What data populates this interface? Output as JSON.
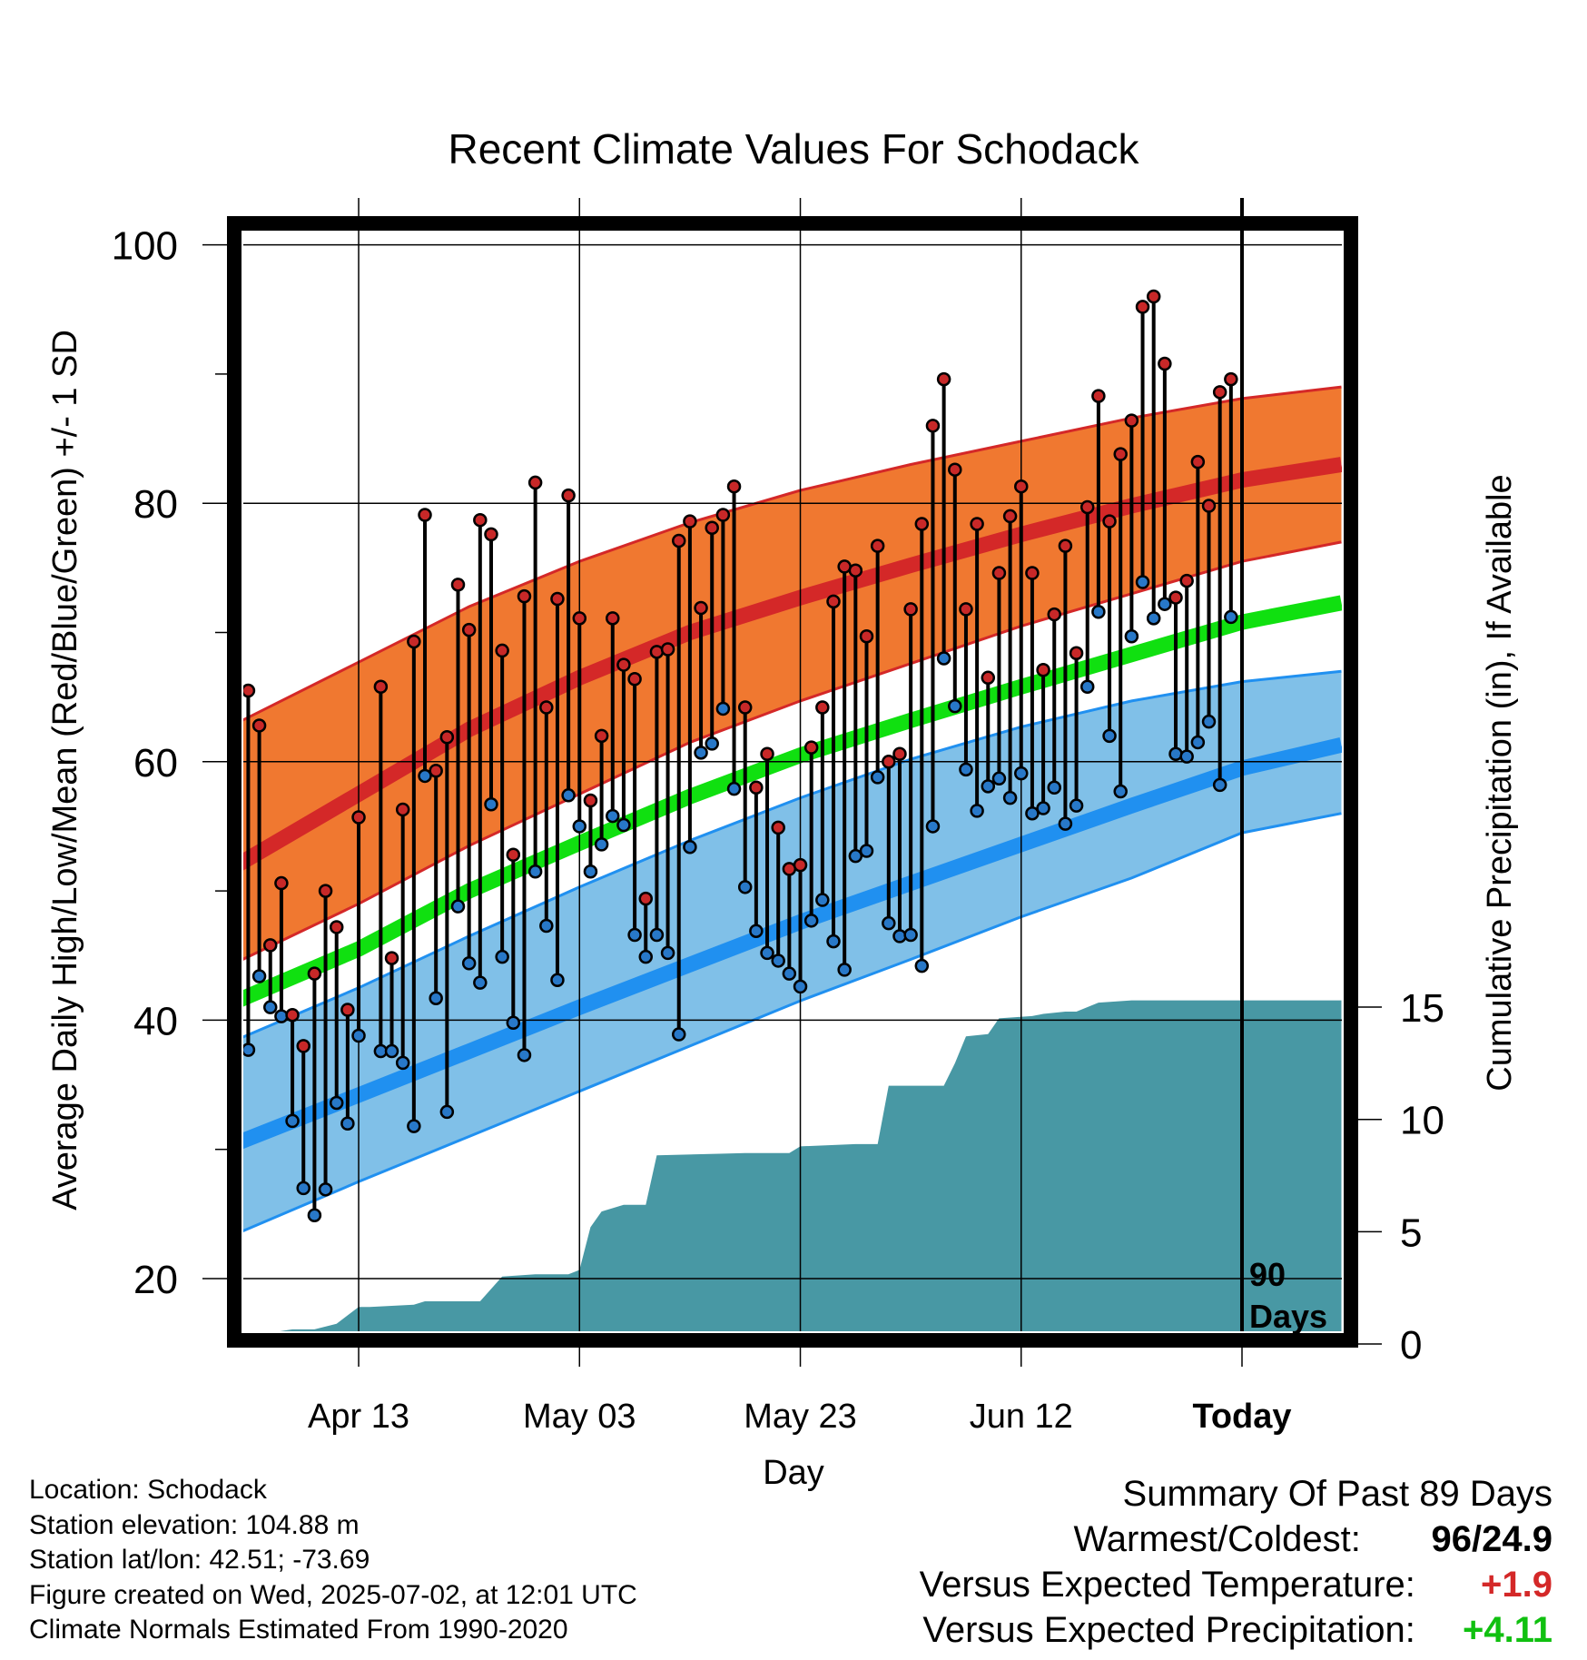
{
  "chart_data": {
    "type": "line",
    "title": "Recent Climate Values For Schodack",
    "xlabel": "Day",
    "ylabel": "Average Daily High/Low/Mean (Red/Blue/Green) +/- 1 SD",
    "y2label": "Cumulative Precipitation (in), If Available",
    "x_tick_labels": [
      "Apr 13",
      "May 03",
      "May 23",
      "Jun 12",
      "Today"
    ],
    "ylim": [
      15,
      100.5
    ],
    "yticks": [
      20,
      40,
      60,
      80,
      100
    ],
    "y2lim": [
      0,
      15
    ],
    "y2ticks": [
      0,
      5,
      10,
      15
    ],
    "grid": true,
    "today_marker_label": "90\nDays",
    "xlim_days": [
      -91,
      9
    ],
    "normals_days": [
      -91,
      -80,
      -70,
      -60,
      -50,
      -40,
      -30,
      -20,
      -10,
      0,
      9
    ],
    "normal_high": [
      52.0,
      57.5,
      62.5,
      66.5,
      70.0,
      72.7,
      75.2,
      77.6,
      79.8,
      81.8,
      83.0
    ],
    "normal_high_upper": [
      63.0,
      67.7,
      72.0,
      75.5,
      78.5,
      81.0,
      83.0,
      84.8,
      86.6,
      88.1,
      89.0
    ],
    "normal_high_lower": [
      44.5,
      49.0,
      53.5,
      57.5,
      61.5,
      64.7,
      67.6,
      70.5,
      73.0,
      75.5,
      77.0
    ],
    "normal_mean": [
      41.5,
      45.5,
      50.0,
      53.7,
      57.3,
      60.5,
      63.2,
      65.8,
      68.3,
      70.8,
      72.3
    ],
    "normal_low": [
      30.5,
      34.2,
      37.6,
      41.0,
      44.3,
      47.6,
      50.6,
      53.6,
      56.6,
      59.5,
      61.3
    ],
    "normal_low_upper": [
      38.5,
      42.5,
      46.5,
      50.3,
      53.9,
      57.2,
      60.2,
      62.7,
      64.7,
      66.2,
      67.0
    ],
    "normal_low_lower": [
      23.5,
      27.5,
      31.0,
      34.5,
      38.0,
      41.5,
      44.7,
      48.0,
      51.0,
      54.5,
      56.0
    ],
    "observations": [
      {
        "day": -90,
        "high": 65.5,
        "low": 37.7
      },
      {
        "day": -89,
        "high": 62.8,
        "low": 43.4
      },
      {
        "day": -88,
        "high": 45.8,
        "low": 41.0
      },
      {
        "day": -87,
        "high": 50.6,
        "low": 40.3
      },
      {
        "day": -86,
        "high": 40.4,
        "low": 32.2
      },
      {
        "day": -85,
        "high": 38.0,
        "low": 27.0
      },
      {
        "day": -84,
        "high": 43.6,
        "low": 24.9
      },
      {
        "day": -83,
        "high": 50.0,
        "low": 26.9
      },
      {
        "day": -82,
        "high": 47.2,
        "low": 33.6
      },
      {
        "day": -81,
        "high": 40.8,
        "low": 32.0
      },
      {
        "day": -80,
        "high": 55.7,
        "low": 38.8
      },
      {
        "day": -78,
        "high": 65.8,
        "low": 37.6
      },
      {
        "day": -77,
        "high": 44.8,
        "low": 37.6
      },
      {
        "day": -76,
        "high": 56.3,
        "low": 36.7
      },
      {
        "day": -75,
        "high": 69.3,
        "low": 31.8
      },
      {
        "day": -74,
        "high": 79.1,
        "low": 58.9
      },
      {
        "day": -73,
        "high": 59.3,
        "low": 41.7
      },
      {
        "day": -72,
        "high": 61.9,
        "low": 32.9
      },
      {
        "day": -71,
        "high": 73.7,
        "low": 48.8
      },
      {
        "day": -70,
        "high": 70.2,
        "low": 44.4
      },
      {
        "day": -69,
        "high": 78.7,
        "low": 42.9
      },
      {
        "day": -68,
        "high": 77.6,
        "low": 56.7
      },
      {
        "day": -67,
        "high": 68.6,
        "low": 44.9
      },
      {
        "day": -66,
        "high": 52.8,
        "low": 39.8
      },
      {
        "day": -65,
        "high": 72.8,
        "low": 37.3
      },
      {
        "day": -64,
        "high": 81.6,
        "low": 51.5
      },
      {
        "day": -63,
        "high": 64.2,
        "low": 47.3
      },
      {
        "day": -62,
        "high": 72.6,
        "low": 43.1
      },
      {
        "day": -61,
        "high": 80.6,
        "low": 57.4
      },
      {
        "day": -60,
        "high": 71.1,
        "low": 55.0
      },
      {
        "day": -59,
        "high": 57.0,
        "low": 51.5
      },
      {
        "day": -58,
        "high": 62.0,
        "low": 53.6
      },
      {
        "day": -57,
        "high": 71.1,
        "low": 55.8
      },
      {
        "day": -56,
        "high": 67.5,
        "low": 55.1
      },
      {
        "day": -55,
        "high": 66.4,
        "low": 46.6
      },
      {
        "day": -54,
        "high": 49.4,
        "low": 44.9
      },
      {
        "day": -53,
        "high": 68.5,
        "low": 46.6
      },
      {
        "day": -52,
        "high": 68.7,
        "low": 45.2
      },
      {
        "day": -51,
        "high": 77.1,
        "low": 38.9
      },
      {
        "day": -50,
        "high": 78.6,
        "low": 53.4
      },
      {
        "day": -49,
        "high": 71.9,
        "low": 60.7
      },
      {
        "day": -48,
        "high": 78.1,
        "low": 61.4
      },
      {
        "day": -47,
        "high": 79.1,
        "low": 64.1
      },
      {
        "day": -46,
        "high": 81.3,
        "low": 57.9
      },
      {
        "day": -45,
        "high": 64.2,
        "low": 50.3
      },
      {
        "day": -44,
        "high": 58.0,
        "low": 46.9
      },
      {
        "day": -43,
        "high": 60.6,
        "low": 45.2
      },
      {
        "day": -42,
        "high": 54.9,
        "low": 44.6
      },
      {
        "day": -41,
        "high": 51.7,
        "low": 43.6
      },
      {
        "day": -40,
        "high": 52.0,
        "low": 42.6
      },
      {
        "day": -39,
        "high": 61.1,
        "low": 47.7
      },
      {
        "day": -38,
        "high": 64.2,
        "low": 49.3
      },
      {
        "day": -37,
        "high": 72.4,
        "low": 46.1
      },
      {
        "day": -36,
        "high": 75.1,
        "low": 43.9
      },
      {
        "day": -35,
        "high": 74.8,
        "low": 52.7
      },
      {
        "day": -34,
        "high": 69.7,
        "low": 53.1
      },
      {
        "day": -33,
        "high": 76.7,
        "low": 58.8
      },
      {
        "day": -32,
        "high": 60.0,
        "low": 47.5
      },
      {
        "day": -31,
        "high": 60.6,
        "low": 46.5
      },
      {
        "day": -30,
        "high": 71.8,
        "low": 46.6
      },
      {
        "day": -29,
        "high": 78.4,
        "low": 44.2
      },
      {
        "day": -28,
        "high": 86.0,
        "low": 55.0
      },
      {
        "day": -27,
        "high": 89.6,
        "low": 68.0
      },
      {
        "day": -26,
        "high": 82.6,
        "low": 64.3
      },
      {
        "day": -25,
        "high": 71.8,
        "low": 59.4
      },
      {
        "day": -24,
        "high": 78.4,
        "low": 56.2
      },
      {
        "day": -23,
        "high": 66.5,
        "low": 58.1
      },
      {
        "day": -22,
        "high": 74.6,
        "low": 58.7
      },
      {
        "day": -21,
        "high": 79.0,
        "low": 57.2
      },
      {
        "day": -20,
        "high": 81.3,
        "low": 59.1
      },
      {
        "day": -19,
        "high": 74.6,
        "low": 56.0
      },
      {
        "day": -18,
        "high": 67.1,
        "low": 56.4
      },
      {
        "day": -17,
        "high": 71.4,
        "low": 58.0
      },
      {
        "day": -16,
        "high": 76.7,
        "low": 55.2
      },
      {
        "day": -15,
        "high": 68.4,
        "low": 56.6
      },
      {
        "day": -14,
        "high": 79.7,
        "low": 65.8
      },
      {
        "day": -13,
        "high": 88.3,
        "low": 71.6
      },
      {
        "day": -12,
        "high": 78.6,
        "low": 62.0
      },
      {
        "day": -11,
        "high": 83.8,
        "low": 57.7
      },
      {
        "day": -10,
        "high": 86.4,
        "low": 69.7
      },
      {
        "day": -9,
        "high": 95.2,
        "low": 73.9
      },
      {
        "day": -8,
        "high": 96.0,
        "low": 71.1
      },
      {
        "day": -7,
        "high": 90.8,
        "low": 72.2
      },
      {
        "day": -6,
        "high": 72.7,
        "low": 60.6
      },
      {
        "day": -5,
        "high": 74.0,
        "low": 60.4
      },
      {
        "day": -4,
        "high": 83.2,
        "low": 61.5
      },
      {
        "day": -3,
        "high": 79.8,
        "low": 63.1
      },
      {
        "day": -2,
        "high": 88.6,
        "low": 58.2
      },
      {
        "day": -1,
        "high": 89.6,
        "low": 71.2
      }
    ],
    "cumulative_precipitation": {
      "days": [
        -90,
        -88,
        -86,
        -84,
        -82,
        -80,
        -79,
        -75,
        -74,
        -69,
        -67,
        -64,
        -61,
        -60,
        -59,
        -58,
        -56,
        -54,
        -53,
        -45,
        -41,
        -40,
        -35,
        -33,
        -32,
        -28,
        -27,
        -26,
        -25,
        -23,
        -22,
        -19,
        -18,
        -16,
        -15,
        -13,
        -10,
        -5,
        9
      ],
      "values": [
        0,
        0.5,
        0.65,
        0.65,
        0.9,
        1.65,
        1.65,
        1.75,
        1.9,
        1.9,
        3.0,
        3.1,
        3.1,
        3.3,
        5.2,
        5.9,
        6.2,
        6.2,
        8.4,
        8.5,
        8.5,
        8.8,
        8.9,
        8.9,
        11.5,
        11.5,
        11.5,
        12.5,
        13.7,
        13.8,
        14.5,
        14.6,
        14.7,
        14.8,
        14.8,
        15.2,
        15.3,
        15.3,
        15.3
      ]
    }
  },
  "info": {
    "location": "Location: Schodack",
    "elevation": "Station elevation: 104.88 m",
    "latlon": "Station lat/lon: 42.51; -73.69",
    "created": "Figure created on Wed, 2025-07-02, at 12:01 UTC",
    "normals": "Climate Normals Estimated From 1990-2020"
  },
  "summary": {
    "title": "Summary Of Past 89 Days",
    "warmest_label": "Warmest/Coldest:",
    "warmest_value": "96",
    "coldest_value": "24.9",
    "temp_label": "Versus Expected Temperature:",
    "temp_value": "+1.9",
    "precip_label": "Versus Expected Precipitation:",
    "precip_value": "+4.11"
  },
  "colors": {
    "high_band": "#f07830",
    "high_line": "#d42828",
    "mean_line": "#10e010",
    "low_band": "#80c0e8",
    "low_line": "#2090f0",
    "precip_fill": "#4898a4",
    "high_dot": "#c82828",
    "low_dot": "#2878c8",
    "temp_anomaly": "#d42828",
    "precip_anomaly": "#10c010"
  }
}
